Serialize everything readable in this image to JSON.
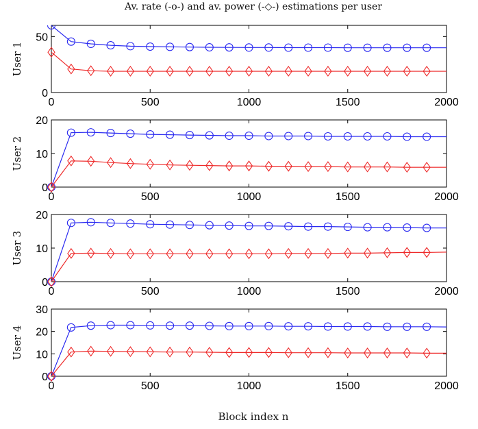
{
  "chart_data": {
    "title": "Av. rate (-o-) and av. power (-◇-) estimations per user",
    "xlabel": "Block index n",
    "xlim": [
      0,
      2000
    ],
    "xticks": [
      0,
      500,
      1000,
      1500,
      2000
    ],
    "colors": {
      "rate": "#2a2af0",
      "power": "#ee2a2a"
    },
    "panels": [
      {
        "ylabel": "User 1",
        "ylim": [
          0,
          60
        ],
        "yticks": [
          0,
          50
        ],
        "type": "line",
        "series": [
          {
            "marker": "circle",
            "color": "#2a2af0",
            "x": [
              0,
              100,
              200,
              300,
              400,
              500,
              600,
              700,
              800,
              900,
              1000,
              1100,
              1200,
              1300,
              1400,
              1500,
              1600,
              1700,
              1800,
              1900,
              2000
            ],
            "y": [
              60,
              45.5,
              43.5,
              42.2,
              41.4,
              41.0,
              40.8,
              40.6,
              40.4,
              40.3,
              40.2,
              40.2,
              40.1,
              40.1,
              40.1,
              40.0,
              40.0,
              40.0,
              40.0,
              40.0,
              40.0
            ]
          },
          {
            "marker": "diamond",
            "color": "#ee2a2a",
            "x": [
              0,
              100,
              200,
              300,
              400,
              500,
              600,
              700,
              800,
              900,
              1000,
              1100,
              1200,
              1300,
              1400,
              1500,
              1600,
              1700,
              1800,
              1900,
              2000
            ],
            "y": [
              36,
              21,
              19.5,
              19.0,
              19.0,
              19.0,
              19.0,
              19.0,
              19.0,
              19.0,
              19.0,
              19.0,
              19.0,
              19.0,
              19.0,
              19.0,
              19.0,
              19.0,
              19.0,
              19.0,
              19.0
            ]
          }
        ]
      },
      {
        "ylabel": "User 2",
        "ylim": [
          0,
          20
        ],
        "yticks": [
          0,
          10,
          20
        ],
        "type": "line",
        "series": [
          {
            "marker": "circle",
            "color": "#2a2af0",
            "x": [
              0,
              100,
              200,
              300,
              400,
              500,
              600,
              700,
              800,
              900,
              1000,
              1100,
              1200,
              1300,
              1400,
              1500,
              1600,
              1700,
              1800,
              1900,
              2000
            ],
            "y": [
              0,
              16.2,
              16.3,
              16.1,
              15.9,
              15.7,
              15.6,
              15.5,
              15.4,
              15.3,
              15.3,
              15.2,
              15.2,
              15.2,
              15.1,
              15.1,
              15.1,
              15.1,
              15.0,
              15.0,
              15.0
            ]
          },
          {
            "marker": "diamond",
            "color": "#ee2a2a",
            "x": [
              0,
              100,
              200,
              300,
              400,
              500,
              600,
              700,
              800,
              900,
              1000,
              1100,
              1200,
              1300,
              1400,
              1500,
              1600,
              1700,
              1800,
              1900,
              2000
            ],
            "y": [
              0,
              7.8,
              7.7,
              7.3,
              7.0,
              6.8,
              6.6,
              6.5,
              6.4,
              6.3,
              6.3,
              6.2,
              6.2,
              6.1,
              6.1,
              6.0,
              6.0,
              6.0,
              5.9,
              5.9,
              5.9
            ]
          }
        ]
      },
      {
        "ylabel": "User 3",
        "ylim": [
          0,
          20
        ],
        "yticks": [
          0,
          10,
          20
        ],
        "type": "line",
        "series": [
          {
            "marker": "circle",
            "color": "#2a2af0",
            "x": [
              0,
              100,
              200,
              300,
              400,
              500,
              600,
              700,
              800,
              900,
              1000,
              1100,
              1200,
              1300,
              1400,
              1500,
              1600,
              1700,
              1800,
              1900,
              2000
            ],
            "y": [
              0,
              17.5,
              17.7,
              17.5,
              17.3,
              17.1,
              17.0,
              16.9,
              16.8,
              16.7,
              16.6,
              16.6,
              16.5,
              16.4,
              16.4,
              16.3,
              16.2,
              16.2,
              16.1,
              16.0,
              16.0
            ]
          },
          {
            "marker": "diamond",
            "color": "#ee2a2a",
            "x": [
              0,
              100,
              200,
              300,
              400,
              500,
              600,
              700,
              800,
              900,
              1000,
              1100,
              1200,
              1300,
              1400,
              1500,
              1600,
              1700,
              1800,
              1900,
              2000
            ],
            "y": [
              0,
              8.4,
              8.5,
              8.4,
              8.3,
              8.3,
              8.3,
              8.3,
              8.3,
              8.3,
              8.3,
              8.3,
              8.4,
              8.4,
              8.4,
              8.5,
              8.5,
              8.6,
              8.7,
              8.7,
              8.8
            ]
          }
        ]
      },
      {
        "ylabel": "User 4",
        "ylim": [
          0,
          30
        ],
        "yticks": [
          0,
          10,
          20,
          30
        ],
        "type": "line",
        "series": [
          {
            "marker": "circle",
            "color": "#2a2af0",
            "x": [
              0,
              100,
              200,
              300,
              400,
              500,
              600,
              700,
              800,
              900,
              1000,
              1100,
              1200,
              1300,
              1400,
              1500,
              1600,
              1700,
              1800,
              1900,
              2000
            ],
            "y": [
              0,
              21.8,
              22.6,
              22.8,
              22.8,
              22.7,
              22.6,
              22.6,
              22.5,
              22.4,
              22.4,
              22.4,
              22.3,
              22.3,
              22.2,
              22.2,
              22.2,
              22.1,
              22.1,
              22.1,
              22.0
            ]
          },
          {
            "marker": "diamond",
            "color": "#ee2a2a",
            "x": [
              0,
              100,
              200,
              300,
              400,
              500,
              600,
              700,
              800,
              900,
              1000,
              1100,
              1200,
              1300,
              1400,
              1500,
              1600,
              1700,
              1800,
              1900,
              2000
            ],
            "y": [
              0,
              10.8,
              11.2,
              11.1,
              11.0,
              10.9,
              10.8,
              10.8,
              10.7,
              10.6,
              10.6,
              10.6,
              10.5,
              10.5,
              10.5,
              10.4,
              10.4,
              10.4,
              10.4,
              10.3,
              10.3
            ]
          }
        ]
      }
    ]
  }
}
